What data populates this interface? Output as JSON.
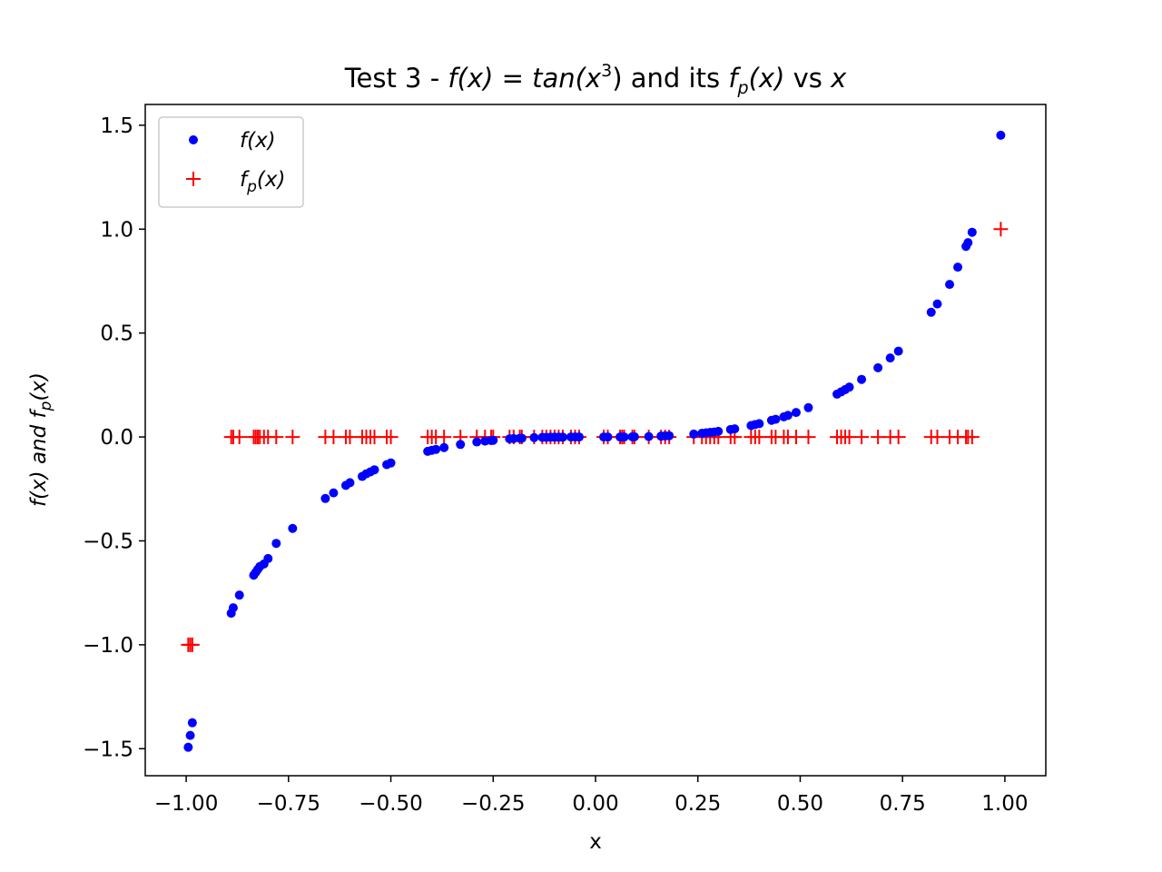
{
  "chart_data": {
    "type": "scatter",
    "title": "Test 3 - f(x) = tan(x^3) and its f_p(x) vs x",
    "title_parts": {
      "prefix": "Test 3 - ",
      "f_expr": "f(x) = tan(x",
      "exponent": "3",
      "mid": ") and its ",
      "fp_f": "f",
      "fp_sub": "p",
      "fp_args": "(x)",
      "suffix_vs": " vs ",
      "suffix_x": "x"
    },
    "xlabel": "x",
    "ylabel_parts": {
      "a": "f(x) and ",
      "f": "f",
      "sub": "p",
      "args": "(x)"
    },
    "xlim": [
      -1.1,
      1.1
    ],
    "ylim": [
      -1.63,
      1.6
    ],
    "xticks": [
      -1.0,
      -0.75,
      -0.5,
      -0.25,
      0.0,
      0.25,
      0.5,
      0.75,
      1.0
    ],
    "xtick_labels": [
      "−1.00",
      "−0.75",
      "−0.50",
      "−0.25",
      "0.00",
      "0.25",
      "0.50",
      "0.75",
      "1.00"
    ],
    "yticks": [
      -1.5,
      -1.0,
      -0.5,
      0.0,
      0.5,
      1.0,
      1.5
    ],
    "ytick_labels": [
      "−1.5",
      "−1.0",
      "−0.5",
      "0.0",
      "0.5",
      "1.0",
      "1.5"
    ],
    "grid": false,
    "legend_position": "top-left",
    "colors": {
      "f": "#0000ff",
      "fp": "#ff0000"
    },
    "series": [
      {
        "name": "f(x)",
        "marker": "dot",
        "x": [
          -0.995,
          -0.99,
          -0.985,
          -0.89,
          -0.885,
          -0.87,
          -0.835,
          -0.83,
          -0.825,
          -0.82,
          -0.81,
          -0.8,
          -0.78,
          -0.74,
          -0.66,
          -0.64,
          -0.61,
          -0.6,
          -0.57,
          -0.56,
          -0.55,
          -0.54,
          -0.51,
          -0.5,
          -0.41,
          -0.4,
          -0.39,
          -0.37,
          -0.33,
          -0.29,
          -0.27,
          -0.255,
          -0.25,
          -0.21,
          -0.2,
          -0.185,
          -0.18,
          -0.15,
          -0.13,
          -0.12,
          -0.11,
          -0.1,
          -0.09,
          -0.08,
          -0.06,
          -0.05,
          -0.04,
          0.02,
          0.03,
          0.06,
          0.065,
          0.07,
          0.09,
          0.095,
          0.13,
          0.16,
          0.17,
          0.18,
          0.24,
          0.26,
          0.27,
          0.28,
          0.29,
          0.3,
          0.33,
          0.34,
          0.38,
          0.39,
          0.4,
          0.43,
          0.44,
          0.46,
          0.47,
          0.49,
          0.52,
          0.59,
          0.6,
          0.61,
          0.62,
          0.65,
          0.69,
          0.72,
          0.74,
          0.82,
          0.835,
          0.865,
          0.885,
          0.905,
          0.91,
          0.92,
          0.99
        ],
        "y": [
          -1.493,
          -1.436,
          -1.375,
          -0.848,
          -0.822,
          -0.761,
          -0.665,
          -0.651,
          -0.637,
          -0.623,
          -0.611,
          -0.585,
          -0.512,
          -0.44,
          -0.296,
          -0.269,
          -0.233,
          -0.22,
          -0.19,
          -0.177,
          -0.168,
          -0.158,
          -0.133,
          -0.125,
          -0.069,
          -0.064,
          -0.06,
          -0.051,
          -0.036,
          -0.024,
          -0.02,
          -0.017,
          -0.016,
          -0.009,
          -0.008,
          -0.006,
          -0.006,
          -0.003,
          -0.002,
          -0.002,
          -0.001,
          -0.001,
          -0.001,
          -0.001,
          0.0,
          0.0,
          0.0,
          0.0,
          0.0,
          0.0,
          0.0,
          0.0,
          0.001,
          0.001,
          0.002,
          0.004,
          0.005,
          0.006,
          0.014,
          0.018,
          0.02,
          0.022,
          0.024,
          0.027,
          0.036,
          0.039,
          0.055,
          0.06,
          0.064,
          0.08,
          0.085,
          0.097,
          0.104,
          0.118,
          0.141,
          0.206,
          0.217,
          0.228,
          0.24,
          0.277,
          0.333,
          0.38,
          0.413,
          0.6,
          0.64,
          0.734,
          0.817,
          0.917,
          0.935,
          0.985,
          1.452
        ]
      },
      {
        "name": "f_p(x)",
        "marker": "plus",
        "x": [
          -0.995,
          -0.99,
          -0.985,
          -0.89,
          -0.885,
          -0.87,
          -0.835,
          -0.83,
          -0.825,
          -0.82,
          -0.81,
          -0.8,
          -0.78,
          -0.74,
          -0.66,
          -0.64,
          -0.61,
          -0.6,
          -0.57,
          -0.56,
          -0.55,
          -0.54,
          -0.51,
          -0.5,
          -0.41,
          -0.4,
          -0.39,
          -0.37,
          -0.33,
          -0.29,
          -0.27,
          -0.255,
          -0.25,
          -0.21,
          -0.2,
          -0.185,
          -0.18,
          -0.15,
          -0.13,
          -0.12,
          -0.11,
          -0.1,
          -0.09,
          -0.08,
          -0.06,
          -0.05,
          -0.04,
          0.02,
          0.03,
          0.06,
          0.065,
          0.07,
          0.09,
          0.095,
          0.13,
          0.16,
          0.17,
          0.18,
          0.24,
          0.26,
          0.27,
          0.28,
          0.29,
          0.3,
          0.33,
          0.34,
          0.38,
          0.39,
          0.4,
          0.43,
          0.44,
          0.46,
          0.47,
          0.49,
          0.52,
          0.59,
          0.6,
          0.61,
          0.62,
          0.65,
          0.69,
          0.72,
          0.74,
          0.82,
          0.835,
          0.865,
          0.885,
          0.905,
          0.91,
          0.92,
          0.99
        ],
        "y": [
          -1,
          -1,
          -1,
          0,
          0,
          0,
          0,
          0,
          0,
          0,
          0,
          0,
          0,
          0,
          0,
          0,
          0,
          0,
          0,
          0,
          0,
          0,
          0,
          0,
          0,
          0,
          0,
          0,
          0,
          0,
          0,
          0,
          0,
          0,
          0,
          0,
          0,
          0,
          0,
          0,
          0,
          0,
          0,
          0,
          0,
          0,
          0,
          0,
          0,
          0,
          0,
          0,
          0,
          0,
          0,
          0,
          0,
          0,
          0,
          0,
          0,
          0,
          0,
          0,
          0,
          0,
          0,
          0,
          0,
          0,
          0,
          0,
          0,
          0,
          0,
          0,
          0,
          0,
          0,
          0,
          0,
          0,
          0,
          0,
          0,
          0,
          0,
          0,
          0,
          0,
          1
        ]
      }
    ]
  }
}
